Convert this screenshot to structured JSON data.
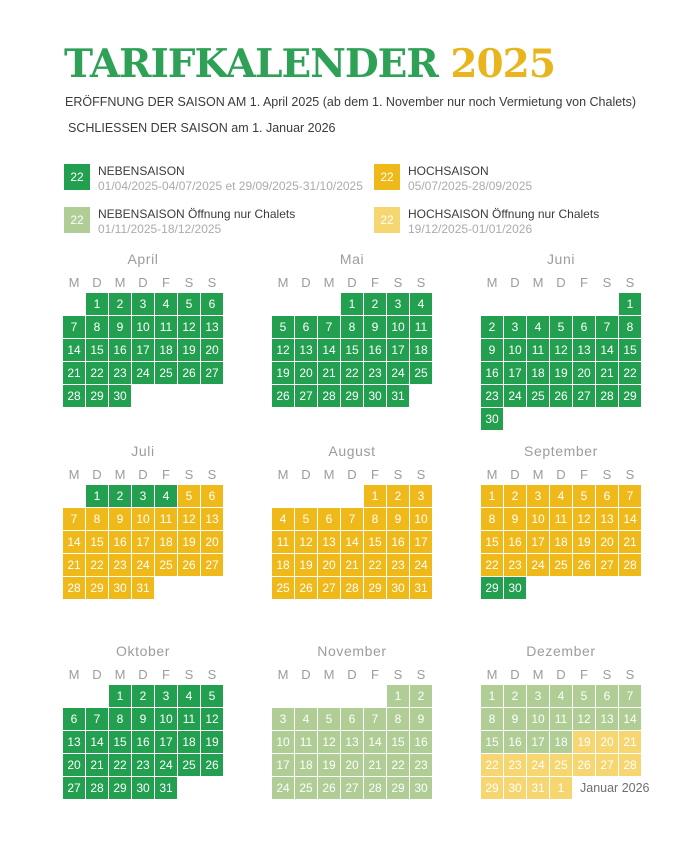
{
  "page": {
    "title_main": "TARIFKALENDER",
    "title_year": "2025",
    "subtitle1": "ERÖFFNUNG DER SAISON AM 1. April 2025 (ab dem 1. November nur noch Vermietung von Chalets)",
    "subtitle2": "SCHLIESSEN DER SAISON am 1. Januar 2026"
  },
  "colors": {
    "title_green": "#2EA157",
    "title_gold": "#E9B51F",
    "heading_gray": "#9C9C9C",
    "text_dark": "#3B3B3B",
    "dates_gray": "#ABABAB",
    "note_gray": "#6F6F6F"
  },
  "season_colors": {
    "g": "#22A050",
    "o": "#F0B91A",
    "lg": "#AFCD94",
    "ly": "#F5D671"
  },
  "legend": [
    {
      "swatch_key": "g",
      "sample": "22",
      "label": "NEBENSAISON",
      "dates": "01/04/2025-04/07/2025 et 29/09/2025-31/10/2025"
    },
    {
      "swatch_key": "o",
      "sample": "22",
      "label": "HOCHSAISON",
      "dates": "05/07/2025-28/09/2025"
    },
    {
      "swatch_key": "lg",
      "sample": "22",
      "label": "NEBENSAISON Öffnung nur Chalets",
      "dates": "01/11/2025-18/12/2025"
    },
    {
      "swatch_key": "ly",
      "sample": "22",
      "label": "HOCHSAISON Öffnung nur Chalets",
      "dates": "19/12/2025-01/01/2026"
    }
  ],
  "weekday_headers": [
    "M",
    "D",
    "M",
    "D",
    "F",
    "S",
    "S"
  ],
  "months": [
    {
      "name": "April",
      "weeks": [
        [
          null,
          [
            1,
            "g"
          ],
          [
            2,
            "g"
          ],
          [
            3,
            "g"
          ],
          [
            4,
            "g"
          ],
          [
            5,
            "g"
          ],
          [
            6,
            "g"
          ]
        ],
        [
          [
            7,
            "g"
          ],
          [
            8,
            "g"
          ],
          [
            9,
            "g"
          ],
          [
            10,
            "g"
          ],
          [
            11,
            "g"
          ],
          [
            12,
            "g"
          ],
          [
            13,
            "g"
          ]
        ],
        [
          [
            14,
            "g"
          ],
          [
            15,
            "g"
          ],
          [
            16,
            "g"
          ],
          [
            17,
            "g"
          ],
          [
            18,
            "g"
          ],
          [
            19,
            "g"
          ],
          [
            20,
            "g"
          ]
        ],
        [
          [
            21,
            "g"
          ],
          [
            22,
            "g"
          ],
          [
            23,
            "g"
          ],
          [
            24,
            "g"
          ],
          [
            25,
            "g"
          ],
          [
            26,
            "g"
          ],
          [
            27,
            "g"
          ]
        ],
        [
          [
            28,
            "g"
          ],
          [
            29,
            "g"
          ],
          [
            30,
            "g"
          ],
          null,
          null,
          null,
          null
        ]
      ]
    },
    {
      "name": "Mai",
      "weeks": [
        [
          null,
          null,
          null,
          [
            1,
            "g"
          ],
          [
            2,
            "g"
          ],
          [
            3,
            "g"
          ],
          [
            4,
            "g"
          ]
        ],
        [
          [
            5,
            "g"
          ],
          [
            6,
            "g"
          ],
          [
            7,
            "g"
          ],
          [
            8,
            "g"
          ],
          [
            9,
            "g"
          ],
          [
            10,
            "g"
          ],
          [
            11,
            "g"
          ]
        ],
        [
          [
            12,
            "g"
          ],
          [
            13,
            "g"
          ],
          [
            14,
            "g"
          ],
          [
            15,
            "g"
          ],
          [
            16,
            "g"
          ],
          [
            17,
            "g"
          ],
          [
            18,
            "g"
          ]
        ],
        [
          [
            19,
            "g"
          ],
          [
            20,
            "g"
          ],
          [
            21,
            "g"
          ],
          [
            22,
            "g"
          ],
          [
            23,
            "g"
          ],
          [
            24,
            "g"
          ],
          [
            25,
            "g"
          ]
        ],
        [
          [
            26,
            "g"
          ],
          [
            27,
            "g"
          ],
          [
            28,
            "g"
          ],
          [
            29,
            "g"
          ],
          [
            30,
            "g"
          ],
          [
            31,
            "g"
          ],
          null
        ]
      ]
    },
    {
      "name": "Juni",
      "weeks": [
        [
          null,
          null,
          null,
          null,
          null,
          null,
          [
            1,
            "g"
          ]
        ],
        [
          [
            2,
            "g"
          ],
          [
            3,
            "g"
          ],
          [
            4,
            "g"
          ],
          [
            5,
            "g"
          ],
          [
            6,
            "g"
          ],
          [
            7,
            "g"
          ],
          [
            8,
            "g"
          ]
        ],
        [
          [
            9,
            "g"
          ],
          [
            10,
            "g"
          ],
          [
            11,
            "g"
          ],
          [
            12,
            "g"
          ],
          [
            13,
            "g"
          ],
          [
            14,
            "g"
          ],
          [
            15,
            "g"
          ]
        ],
        [
          [
            16,
            "g"
          ],
          [
            17,
            "g"
          ],
          [
            18,
            "g"
          ],
          [
            19,
            "g"
          ],
          [
            20,
            "g"
          ],
          [
            21,
            "g"
          ],
          [
            22,
            "g"
          ]
        ],
        [
          [
            23,
            "g"
          ],
          [
            24,
            "g"
          ],
          [
            25,
            "g"
          ],
          [
            26,
            "g"
          ],
          [
            27,
            "g"
          ],
          [
            28,
            "g"
          ],
          [
            29,
            "g"
          ]
        ],
        [
          [
            30,
            "g"
          ],
          null,
          null,
          null,
          null,
          null,
          null
        ]
      ]
    },
    {
      "name": "Juli",
      "weeks": [
        [
          null,
          [
            1,
            "g"
          ],
          [
            2,
            "g"
          ],
          [
            3,
            "g"
          ],
          [
            4,
            "g"
          ],
          [
            5,
            "o"
          ],
          [
            6,
            "o"
          ]
        ],
        [
          [
            7,
            "o"
          ],
          [
            8,
            "o"
          ],
          [
            9,
            "o"
          ],
          [
            10,
            "o"
          ],
          [
            11,
            "o"
          ],
          [
            12,
            "o"
          ],
          [
            13,
            "o"
          ]
        ],
        [
          [
            14,
            "o"
          ],
          [
            15,
            "o"
          ],
          [
            16,
            "o"
          ],
          [
            17,
            "o"
          ],
          [
            18,
            "o"
          ],
          [
            19,
            "o"
          ],
          [
            20,
            "o"
          ]
        ],
        [
          [
            21,
            "o"
          ],
          [
            22,
            "o"
          ],
          [
            23,
            "o"
          ],
          [
            24,
            "o"
          ],
          [
            25,
            "o"
          ],
          [
            26,
            "o"
          ],
          [
            27,
            "o"
          ]
        ],
        [
          [
            28,
            "o"
          ],
          [
            29,
            "o"
          ],
          [
            30,
            "o"
          ],
          [
            31,
            "o"
          ],
          null,
          null,
          null
        ]
      ]
    },
    {
      "name": "August",
      "weeks": [
        [
          null,
          null,
          null,
          null,
          [
            1,
            "o"
          ],
          [
            2,
            "o"
          ],
          [
            3,
            "o"
          ]
        ],
        [
          [
            4,
            "o"
          ],
          [
            5,
            "o"
          ],
          [
            6,
            "o"
          ],
          [
            7,
            "o"
          ],
          [
            8,
            "o"
          ],
          [
            9,
            "o"
          ],
          [
            10,
            "o"
          ]
        ],
        [
          [
            11,
            "o"
          ],
          [
            12,
            "o"
          ],
          [
            13,
            "o"
          ],
          [
            14,
            "o"
          ],
          [
            15,
            "o"
          ],
          [
            16,
            "o"
          ],
          [
            17,
            "o"
          ]
        ],
        [
          [
            18,
            "o"
          ],
          [
            19,
            "o"
          ],
          [
            20,
            "o"
          ],
          [
            21,
            "o"
          ],
          [
            22,
            "o"
          ],
          [
            23,
            "o"
          ],
          [
            24,
            "o"
          ]
        ],
        [
          [
            25,
            "o"
          ],
          [
            26,
            "o"
          ],
          [
            27,
            "o"
          ],
          [
            28,
            "o"
          ],
          [
            29,
            "o"
          ],
          [
            30,
            "o"
          ],
          [
            31,
            "o"
          ]
        ]
      ]
    },
    {
      "name": "September",
      "weeks": [
        [
          [
            1,
            "o"
          ],
          [
            2,
            "o"
          ],
          [
            3,
            "o"
          ],
          [
            4,
            "o"
          ],
          [
            5,
            "o"
          ],
          [
            6,
            "o"
          ],
          [
            7,
            "o"
          ]
        ],
        [
          [
            8,
            "o"
          ],
          [
            9,
            "o"
          ],
          [
            10,
            "o"
          ],
          [
            11,
            "o"
          ],
          [
            12,
            "o"
          ],
          [
            13,
            "o"
          ],
          [
            14,
            "o"
          ]
        ],
        [
          [
            15,
            "o"
          ],
          [
            16,
            "o"
          ],
          [
            17,
            "o"
          ],
          [
            18,
            "o"
          ],
          [
            19,
            "o"
          ],
          [
            20,
            "o"
          ],
          [
            21,
            "o"
          ]
        ],
        [
          [
            22,
            "o"
          ],
          [
            23,
            "o"
          ],
          [
            24,
            "o"
          ],
          [
            25,
            "o"
          ],
          [
            26,
            "o"
          ],
          [
            27,
            "o"
          ],
          [
            28,
            "o"
          ]
        ],
        [
          [
            29,
            "g"
          ],
          [
            30,
            "g"
          ],
          null,
          null,
          null,
          null,
          null
        ]
      ]
    },
    {
      "name": "Oktober",
      "weeks": [
        [
          null,
          null,
          [
            1,
            "g"
          ],
          [
            2,
            "g"
          ],
          [
            3,
            "g"
          ],
          [
            4,
            "g"
          ],
          [
            5,
            "g"
          ]
        ],
        [
          [
            6,
            "g"
          ],
          [
            7,
            "g"
          ],
          [
            8,
            "g"
          ],
          [
            9,
            "g"
          ],
          [
            10,
            "g"
          ],
          [
            11,
            "g"
          ],
          [
            12,
            "g"
          ]
        ],
        [
          [
            13,
            "g"
          ],
          [
            14,
            "g"
          ],
          [
            15,
            "g"
          ],
          [
            16,
            "g"
          ],
          [
            17,
            "g"
          ],
          [
            18,
            "g"
          ],
          [
            19,
            "g"
          ]
        ],
        [
          [
            20,
            "g"
          ],
          [
            21,
            "g"
          ],
          [
            22,
            "g"
          ],
          [
            23,
            "g"
          ],
          [
            24,
            "g"
          ],
          [
            25,
            "g"
          ],
          [
            26,
            "g"
          ]
        ],
        [
          [
            27,
            "g"
          ],
          [
            28,
            "g"
          ],
          [
            29,
            "g"
          ],
          [
            30,
            "g"
          ],
          [
            31,
            "g"
          ],
          null,
          null
        ]
      ]
    },
    {
      "name": "November",
      "weeks": [
        [
          null,
          null,
          null,
          null,
          null,
          [
            1,
            "lg"
          ],
          [
            2,
            "lg"
          ]
        ],
        [
          [
            3,
            "lg"
          ],
          [
            4,
            "lg"
          ],
          [
            5,
            "lg"
          ],
          [
            6,
            "lg"
          ],
          [
            7,
            "lg"
          ],
          [
            8,
            "lg"
          ],
          [
            9,
            "lg"
          ]
        ],
        [
          [
            10,
            "lg"
          ],
          [
            11,
            "lg"
          ],
          [
            12,
            "lg"
          ],
          [
            13,
            "lg"
          ],
          [
            14,
            "lg"
          ],
          [
            15,
            "lg"
          ],
          [
            16,
            "lg"
          ]
        ],
        [
          [
            17,
            "lg"
          ],
          [
            18,
            "lg"
          ],
          [
            19,
            "lg"
          ],
          [
            20,
            "lg"
          ],
          [
            21,
            "lg"
          ],
          [
            22,
            "lg"
          ],
          [
            23,
            "lg"
          ]
        ],
        [
          [
            24,
            "lg"
          ],
          [
            25,
            "lg"
          ],
          [
            26,
            "lg"
          ],
          [
            27,
            "lg"
          ],
          [
            28,
            "lg"
          ],
          [
            29,
            "lg"
          ],
          [
            30,
            "lg"
          ]
        ]
      ]
    },
    {
      "name": "Dezember",
      "note": "Januar 2026",
      "weeks": [
        [
          [
            1,
            "lg"
          ],
          [
            2,
            "lg"
          ],
          [
            3,
            "lg"
          ],
          [
            4,
            "lg"
          ],
          [
            5,
            "lg"
          ],
          [
            6,
            "lg"
          ],
          [
            7,
            "lg"
          ]
        ],
        [
          [
            8,
            "lg"
          ],
          [
            9,
            "lg"
          ],
          [
            10,
            "lg"
          ],
          [
            11,
            "lg"
          ],
          [
            12,
            "lg"
          ],
          [
            13,
            "lg"
          ],
          [
            14,
            "lg"
          ]
        ],
        [
          [
            15,
            "lg"
          ],
          [
            16,
            "lg"
          ],
          [
            17,
            "lg"
          ],
          [
            18,
            "lg"
          ],
          [
            19,
            "ly"
          ],
          [
            20,
            "ly"
          ],
          [
            21,
            "ly"
          ]
        ],
        [
          [
            22,
            "ly"
          ],
          [
            23,
            "ly"
          ],
          [
            24,
            "ly"
          ],
          [
            25,
            "ly"
          ],
          [
            26,
            "ly"
          ],
          [
            27,
            "ly"
          ],
          [
            28,
            "ly"
          ]
        ],
        [
          [
            29,
            "ly"
          ],
          [
            30,
            "ly"
          ],
          [
            31,
            "ly"
          ],
          [
            1,
            "ly"
          ]
        ]
      ]
    }
  ]
}
